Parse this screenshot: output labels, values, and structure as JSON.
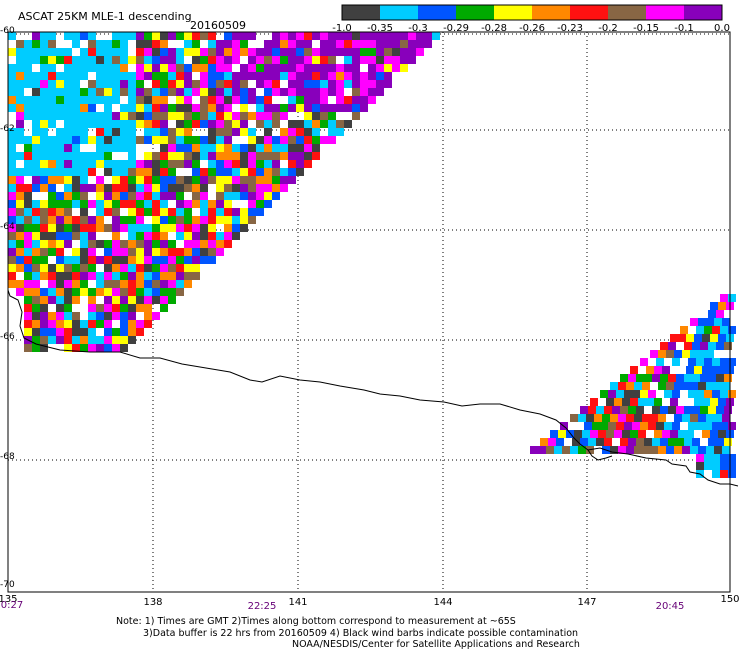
{
  "header": {
    "title": "ASCAT 25KM MLE-1 descending",
    "date": "20160509"
  },
  "colorbar": {
    "colors": [
      "#404040",
      "#00ccff",
      "#0055ff",
      "#00aa00",
      "#ffff00",
      "#ff8800",
      "#ff1111",
      "#886644",
      "#ff00ff",
      "#8800bb"
    ],
    "labels": [
      "-1.0",
      "-0.35",
      "-0.3",
      "-0.29",
      "-0.28",
      "-0.26",
      "-0.23",
      "-0.2",
      "-0.15",
      "-0.1",
      "0.0"
    ]
  },
  "map": {
    "lat_ticks": [
      "-60",
      "-62",
      "-64",
      "-66",
      "-68",
      "-70"
    ],
    "lon_ticks": [
      "135",
      "138",
      "141",
      "144",
      "147",
      "150"
    ],
    "time_labels": [
      "0:27",
      "22:25",
      "20:45"
    ],
    "plot_bg": "#ffffff",
    "coast_color": "#000000",
    "grid_color": "#000000"
  },
  "notes": {
    "line1": "Note: 1) Times are GMT 2)Times along bottom correspond to measurement at ~65S",
    "line2": "3)Data buffer is 22 hrs from 20160509 4) Black wind barbs indicate possible contamination",
    "line3": "NOAA/NESDIS/Center for Satellite Applications and Research"
  }
}
